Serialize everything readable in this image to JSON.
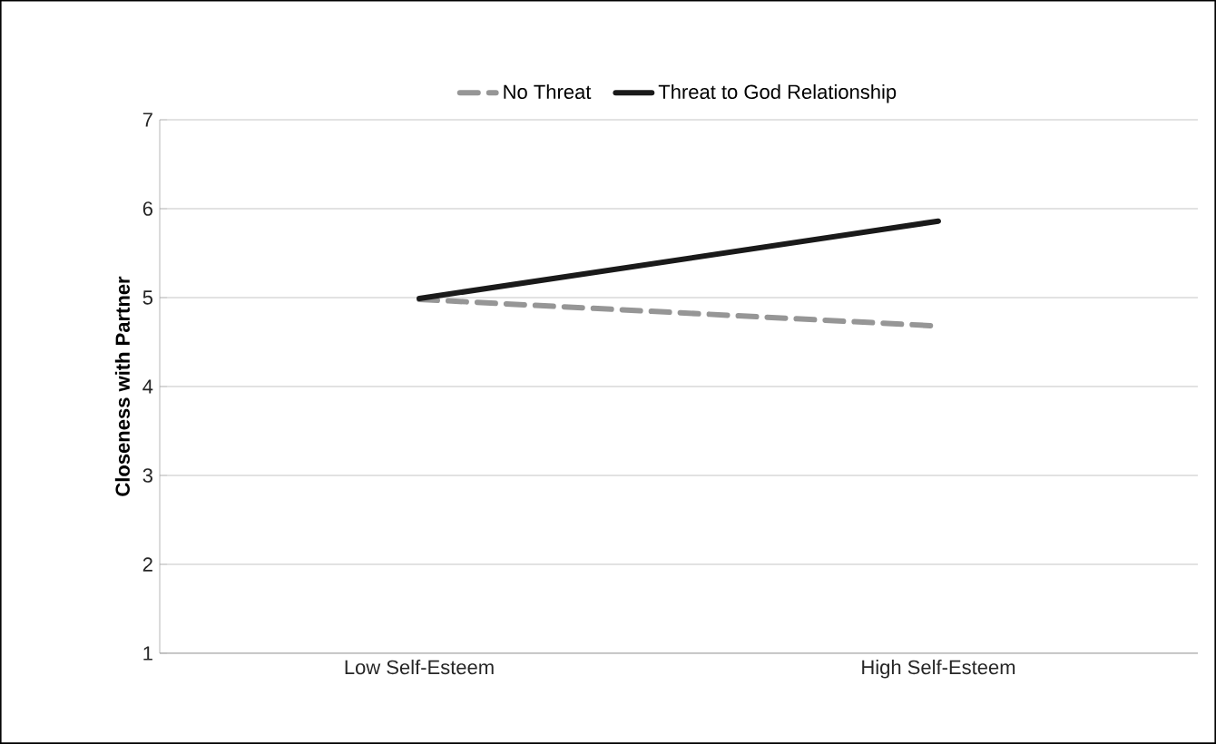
{
  "chart_data": {
    "type": "line",
    "ylabel": "Closeness with Partner",
    "categories": [
      "Low Self-Esteem",
      "High Self-Esteem"
    ],
    "series": [
      {
        "name": "No Threat",
        "color": "#969696",
        "values": [
          4.98,
          4.68
        ],
        "line_style": "dashed"
      },
      {
        "name": "Threat to God Relationship",
        "color": "#1a1a1a",
        "values": [
          4.99,
          5.86
        ],
        "line_style": "solid"
      }
    ],
    "ylim": [
      1,
      7
    ],
    "yticks": [
      1,
      2,
      3,
      4,
      5,
      6,
      7
    ],
    "grid": "y",
    "legend": "top",
    "marker": "none"
  }
}
